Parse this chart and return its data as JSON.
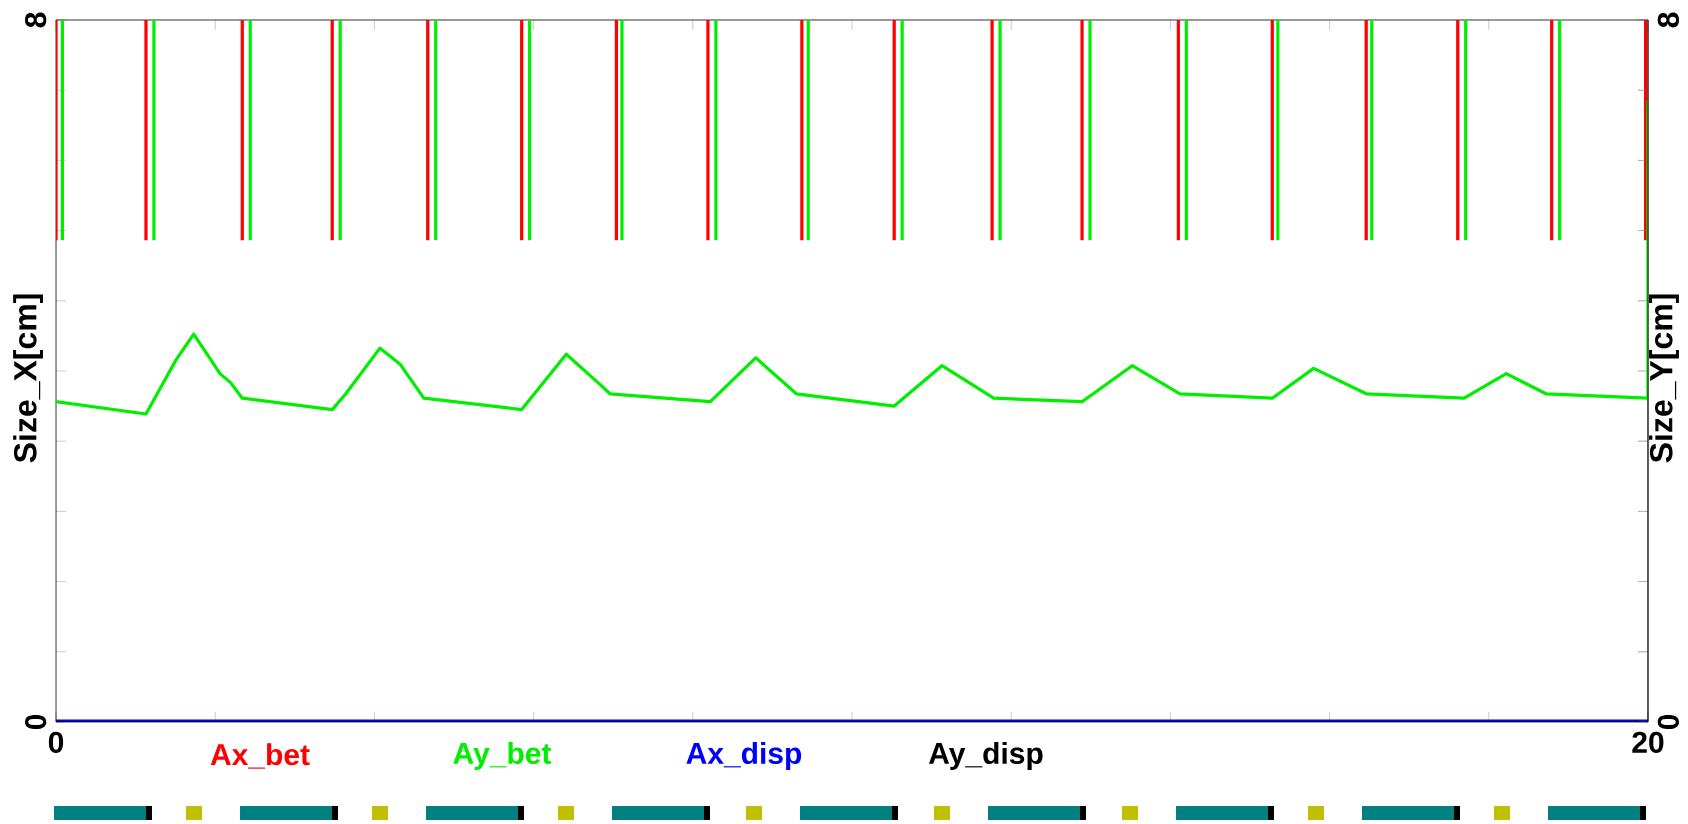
{
  "chart_data": {
    "type": "line",
    "ylabel": "Size_X[cm]",
    "y2label": "Size_Y[cm]",
    "xlim": [
      0,
      20
    ],
    "ylim": [
      0,
      8
    ],
    "y2lim": [
      0,
      8
    ],
    "xticks": [
      0,
      {
        "value": 2,
        "label": null
      },
      {
        "value": 4,
        "label": null
      },
      {
        "value": 6,
        "label": null
      },
      {
        "value": 8,
        "label": null
      },
      {
        "value": 10,
        "label": null
      },
      {
        "value": 12,
        "label": null
      },
      {
        "value": 14,
        "label": null
      },
      {
        "value": 16,
        "label": null
      },
      {
        "value": 18,
        "label": null
      },
      20
    ],
    "yticks": [
      0,
      {
        "value": 0.8,
        "label": null
      },
      {
        "value": 1.6,
        "label": null
      },
      {
        "value": 2.4,
        "label": null
      },
      {
        "value": 3.2,
        "label": null
      },
      {
        "value": 4,
        "label": null
      },
      {
        "value": 4.8,
        "label": null
      },
      {
        "value": 5.6,
        "label": null
      },
      {
        "value": 6.4,
        "label": null
      },
      {
        "value": 7.2,
        "label": null
      },
      8
    ],
    "y2ticks": [
      0,
      {
        "value": 0.8,
        "label": null
      },
      {
        "value": 1.6,
        "label": null
      },
      {
        "value": 2.4,
        "label": null
      },
      {
        "value": 3.2,
        "label": null
      },
      {
        "value": 4,
        "label": null
      },
      {
        "value": 4.8,
        "label": null
      },
      {
        "value": 5.6,
        "label": null
      },
      {
        "value": 6.4,
        "label": null
      },
      {
        "value": 7.2,
        "label": null
      },
      8
    ],
    "legend": "bottom",
    "marker": "none",
    "line_style": "solid",
    "series": [
      {
        "name": "Ax_bet",
        "color": "#ff0000",
        "x": [
          0,
          0,
          null,
          1.13,
          1.13,
          null,
          2.34,
          2.34,
          null,
          3.47,
          3.47,
          null,
          4.67,
          4.67,
          null,
          5.85,
          5.85,
          null,
          7.04,
          7.04,
          null,
          8.19,
          8.19,
          null,
          9.37,
          9.37,
          null,
          10.53,
          10.53,
          null,
          11.76,
          11.76,
          null,
          12.89,
          12.89,
          null,
          14.1,
          14.1,
          null,
          15.28,
          15.28,
          null,
          16.46,
          16.46,
          null,
          17.61,
          17.61,
          null,
          18.79,
          18.79,
          null,
          19.97,
          19.97
        ],
        "values": [
          5.49,
          8,
          null,
          5.49,
          8,
          null,
          5.49,
          8,
          null,
          5.49,
          8,
          null,
          5.49,
          8,
          null,
          5.49,
          8,
          null,
          5.49,
          8,
          null,
          5.49,
          8,
          null,
          5.49,
          8,
          null,
          5.49,
          8,
          null,
          5.49,
          8,
          null,
          5.49,
          8,
          null,
          5.49,
          8,
          null,
          5.49,
          8,
          null,
          5.49,
          8,
          null,
          5.49,
          8,
          null,
          5.49,
          8,
          null,
          5.49,
          8
        ]
      },
      {
        "name": "Ay_bet",
        "color": "#00ee00",
        "x": [
          0,
          1.13,
          1.51,
          1.73,
          2.06,
          2.19,
          2.34,
          3.47,
          3.64,
          4.07,
          4.32,
          4.62,
          5.85,
          6.41,
          6.83,
          6.96,
          8.22,
          8.79,
          9.3,
          10.53,
          11.13,
          11.78,
          12.89,
          13.52,
          14.12,
          15.28,
          15.8,
          16.46,
          17.69,
          18.22,
          18.72,
          20,
          20,
          null,
          0.08,
          0.08,
          null,
          1.23,
          1.23,
          null,
          2.44,
          2.44,
          null,
          3.57,
          3.57,
          null,
          4.77,
          4.77,
          null,
          5.95,
          5.95,
          null,
          7.11,
          7.11,
          null,
          8.29,
          8.29,
          null,
          9.45,
          9.45,
          null,
          10.63,
          10.63,
          null,
          11.86,
          11.86,
          null,
          12.99,
          12.99,
          null,
          14.2,
          14.2,
          null,
          15.35,
          15.35,
          null,
          16.53,
          16.53,
          null,
          17.71,
          17.71,
          null,
          18.89,
          18.89
        ],
        "values": [
          3.65,
          3.51,
          4.13,
          4.42,
          3.97,
          3.87,
          3.69,
          3.56,
          3.74,
          4.26,
          4.08,
          3.69,
          3.56,
          4.19,
          3.85,
          3.74,
          3.65,
          4.15,
          3.74,
          3.6,
          4.06,
          3.69,
          3.65,
          4.06,
          3.74,
          3.69,
          4.03,
          3.74,
          3.69,
          3.97,
          3.74,
          3.69,
          7.08,
          null,
          5.49,
          8,
          null,
          5.49,
          8,
          null,
          5.49,
          8,
          null,
          5.49,
          8,
          null,
          5.49,
          8,
          null,
          5.49,
          8,
          null,
          5.49,
          8,
          null,
          5.49,
          8,
          null,
          5.49,
          8,
          null,
          5.49,
          8,
          null,
          5.49,
          8,
          null,
          5.49,
          8,
          null,
          5.49,
          8,
          null,
          5.49,
          8,
          null,
          5.49,
          8,
          null,
          5.49,
          8,
          null,
          5.49,
          8
        ]
      },
      {
        "name": "Ax_disp",
        "color": "#0000ff",
        "x": [
          0,
          20
        ],
        "values": [
          0,
          0
        ]
      },
      {
        "name": "Ay_disp",
        "color": "#000000",
        "x": [
          0,
          20
        ],
        "values": [
          0,
          0
        ]
      }
    ]
  }
}
